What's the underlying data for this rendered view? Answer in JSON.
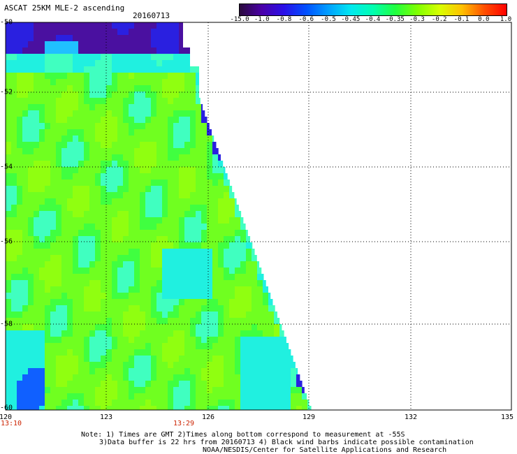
{
  "header": {
    "title": "ASCAT 25KM MLE-2 ascending",
    "date": "20160713"
  },
  "colorbar": {
    "labels": [
      "-15.0",
      "-1.0",
      "-0.8",
      "-0.6",
      "-0.5",
      "-0.45",
      "-0.4",
      "-0.35",
      "-0.3",
      "-0.2",
      "-0.1",
      "0.0",
      "1.0"
    ],
    "colors": [
      "#2a0a3c",
      "#4a00a8",
      "#2a10e8",
      "#0050ff",
      "#00a0ff",
      "#00e8f0",
      "#00ffb0",
      "#20ff40",
      "#80ff00",
      "#d8ff00",
      "#ffc000",
      "#ff5000",
      "#ff0000"
    ]
  },
  "axes": {
    "lat_labels": [
      "-50",
      "-52",
      "-54",
      "-56",
      "-58",
      "-60"
    ],
    "lon_labels": [
      "120",
      "123",
      "126",
      "129",
      "132",
      "135"
    ],
    "times": [
      "13:10",
      "13:29"
    ]
  },
  "notes": [
    "Note: 1) Times are GMT 2)Times along bottom correspond to measurement at -55S",
    "3)Data buffer is 22 hrs from 20160713 4) Black wind barbs indicate possible contamination",
    "NOAA/NESDIS/Center for Satellite Applications and Research"
  ]
}
